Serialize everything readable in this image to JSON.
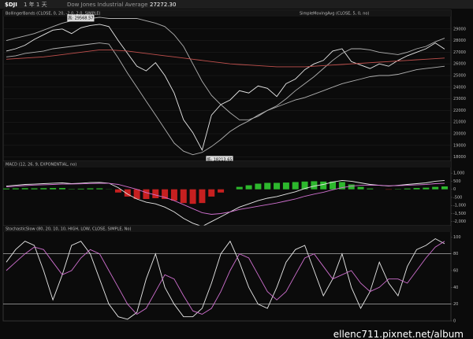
{
  "header": {
    "symbol": "$DJI",
    "timeframe": "1 年 1 天",
    "name": "Dow Jones Industrial Average",
    "price": "27272.30"
  },
  "watermark": "ellenc711.pixnet.net/album",
  "chart_data": [
    {
      "type": "line",
      "title": "BollingerBands (CLOSE, 0, 20, -2.0, 2.0, SIMPLE)",
      "subtitle": "SimpleMovingAvg (CLOSE, 5, 0, no)",
      "high_label": "高: 29568.57",
      "low_label": "低: 18213.65",
      "ylim": [
        17300,
        30000
      ],
      "yticks": [
        29000,
        28000,
        27000,
        26000,
        25000,
        24000,
        23000,
        22000,
        21000,
        20000,
        19000,
        18000
      ],
      "grid": true,
      "series": [
        {
          "color": "#e8e8e8",
          "values": [
            27100,
            27300,
            27600,
            28100,
            28500,
            28900,
            29000,
            28600,
            29100,
            29300,
            29400,
            29200,
            28000,
            26900,
            25800,
            25400,
            26100,
            25000,
            23500,
            21200,
            20100,
            18600,
            21600,
            22500,
            22900,
            23700,
            23500,
            24100,
            23900,
            23200,
            24300,
            24700,
            25500,
            26000,
            26300,
            27100,
            27300,
            26200,
            25900,
            25600,
            26000,
            25800,
            26300,
            26700,
            27000,
            27300,
            27800,
            27272
          ]
        },
        {
          "color": "#b0b0b0",
          "values": [
            28000,
            28200,
            28400,
            28600,
            28900,
            29200,
            29500,
            29700,
            29800,
            29900,
            30000,
            29900,
            29900,
            29900,
            29900,
            29700,
            29500,
            29200,
            28500,
            27500,
            26000,
            24500,
            23300,
            22500,
            21800,
            21200,
            21200,
            21500,
            22000,
            22400,
            23000,
            23700,
            24300,
            24900,
            25600,
            26300,
            26900,
            27300,
            27300,
            27200,
            27000,
            26900,
            26800,
            27000,
            27300,
            27500,
            27900,
            28200
          ]
        },
        {
          "color": "#b0b0b0",
          "values": [
            26600,
            26700,
            26900,
            27000,
            27100,
            27300,
            27400,
            27500,
            27600,
            27700,
            27800,
            27700,
            26500,
            25200,
            24000,
            22800,
            21600,
            20400,
            19200,
            18500,
            18200,
            18400,
            18900,
            19500,
            20200,
            20700,
            21100,
            21600,
            22000,
            22300,
            22600,
            22900,
            23100,
            23400,
            23700,
            24000,
            24300,
            24500,
            24700,
            24900,
            25000,
            25000,
            25100,
            25300,
            25500,
            25600,
            25700,
            25800
          ]
        },
        {
          "color": "#c0504d",
          "values": [
            26400,
            26450,
            26500,
            26550,
            26600,
            26700,
            26800,
            26900,
            27000,
            27100,
            27200,
            27200,
            27150,
            27100,
            27000,
            26900,
            26800,
            26700,
            26600,
            26500,
            26400,
            26300,
            26200,
            26100,
            26000,
            25950,
            25900,
            25850,
            25800,
            25750,
            25750,
            25750,
            25750,
            25800,
            25850,
            25900,
            25950,
            26000,
            26050,
            26100,
            26150,
            26200,
            26250,
            26300,
            26350,
            26400,
            26450,
            26500
          ]
        }
      ]
    },
    {
      "type": "line",
      "title": "MACD (12, 26, 9, EXPONENTIAL, no)",
      "ylim": [
        -2500,
        1300
      ],
      "yticks": [
        {
          "value": 1000,
          "label": "1,000"
        },
        500,
        0,
        -500,
        {
          "value": -1000,
          "label": "-1,000"
        },
        {
          "value": -1500,
          "label": "-1,500"
        },
        {
          "value": -2000,
          "label": "-2,000"
        }
      ],
      "grid": false,
      "histogram": [
        50,
        60,
        70,
        60,
        70,
        80,
        80,
        20,
        40,
        60,
        60,
        10,
        -200,
        -450,
        -600,
        -600,
        -550,
        -600,
        -700,
        -850,
        -900,
        -850,
        -450,
        -200,
        0,
        150,
        250,
        350,
        400,
        400,
        420,
        450,
        480,
        500,
        480,
        480,
        450,
        300,
        150,
        50,
        0,
        -20,
        20,
        50,
        80,
        100,
        150,
        180
      ],
      "series": [
        {
          "color": "#e8e8e8",
          "values": [
            200,
            250,
            300,
            320,
            350,
            380,
            400,
            350,
            380,
            420,
            430,
            380,
            100,
            -300,
            -600,
            -800,
            -900,
            -1100,
            -1400,
            -1800,
            -2100,
            -2300,
            -2000,
            -1700,
            -1400,
            -1100,
            -900,
            -700,
            -550,
            -450,
            -300,
            -150,
            50,
            200,
            300,
            450,
            550,
            500,
            400,
            300,
            250,
            200,
            250,
            300,
            350,
            400,
            500,
            550
          ]
        },
        {
          "color": "#d070d0",
          "values": [
            150,
            190,
            230,
            260,
            280,
            300,
            320,
            330,
            340,
            360,
            370,
            370,
            300,
            150,
            0,
            -200,
            -350,
            -500,
            -700,
            -950,
            -1200,
            -1450,
            -1550,
            -1500,
            -1400,
            -1250,
            -1150,
            -1050,
            -950,
            -850,
            -720,
            -600,
            -430,
            -300,
            -180,
            -30,
            100,
            200,
            250,
            250,
            250,
            220,
            230,
            250,
            270,
            300,
            350,
            370
          ]
        }
      ]
    },
    {
      "type": "line",
      "title": "StochasticSlow (80, 20, 10, 10, HIGH, LOW, CLOSE, SIMPLE, No)",
      "ylim": [
        0,
        105
      ],
      "yticks": [
        100,
        80,
        60,
        40,
        20,
        0
      ],
      "levels": [
        80,
        20
      ],
      "grid": false,
      "series": [
        {
          "color": "#e8e8e8",
          "values": [
            70,
            85,
            95,
            90,
            60,
            25,
            55,
            90,
            95,
            80,
            50,
            20,
            5,
            2,
            10,
            50,
            80,
            40,
            20,
            5,
            5,
            15,
            45,
            80,
            95,
            70,
            40,
            20,
            15,
            40,
            70,
            85,
            90,
            60,
            30,
            50,
            80,
            40,
            15,
            35,
            70,
            45,
            30,
            65,
            85,
            90,
            98,
            92
          ]
        },
        {
          "color": "#d070d0",
          "values": [
            60,
            70,
            80,
            88,
            85,
            70,
            55,
            60,
            75,
            85,
            80,
            60,
            40,
            20,
            8,
            15,
            35,
            55,
            50,
            30,
            12,
            8,
            15,
            35,
            60,
            80,
            75,
            55,
            35,
            25,
            35,
            55,
            75,
            80,
            65,
            50,
            55,
            60,
            45,
            35,
            40,
            50,
            50,
            45,
            60,
            75,
            88,
            95
          ]
        }
      ]
    }
  ]
}
